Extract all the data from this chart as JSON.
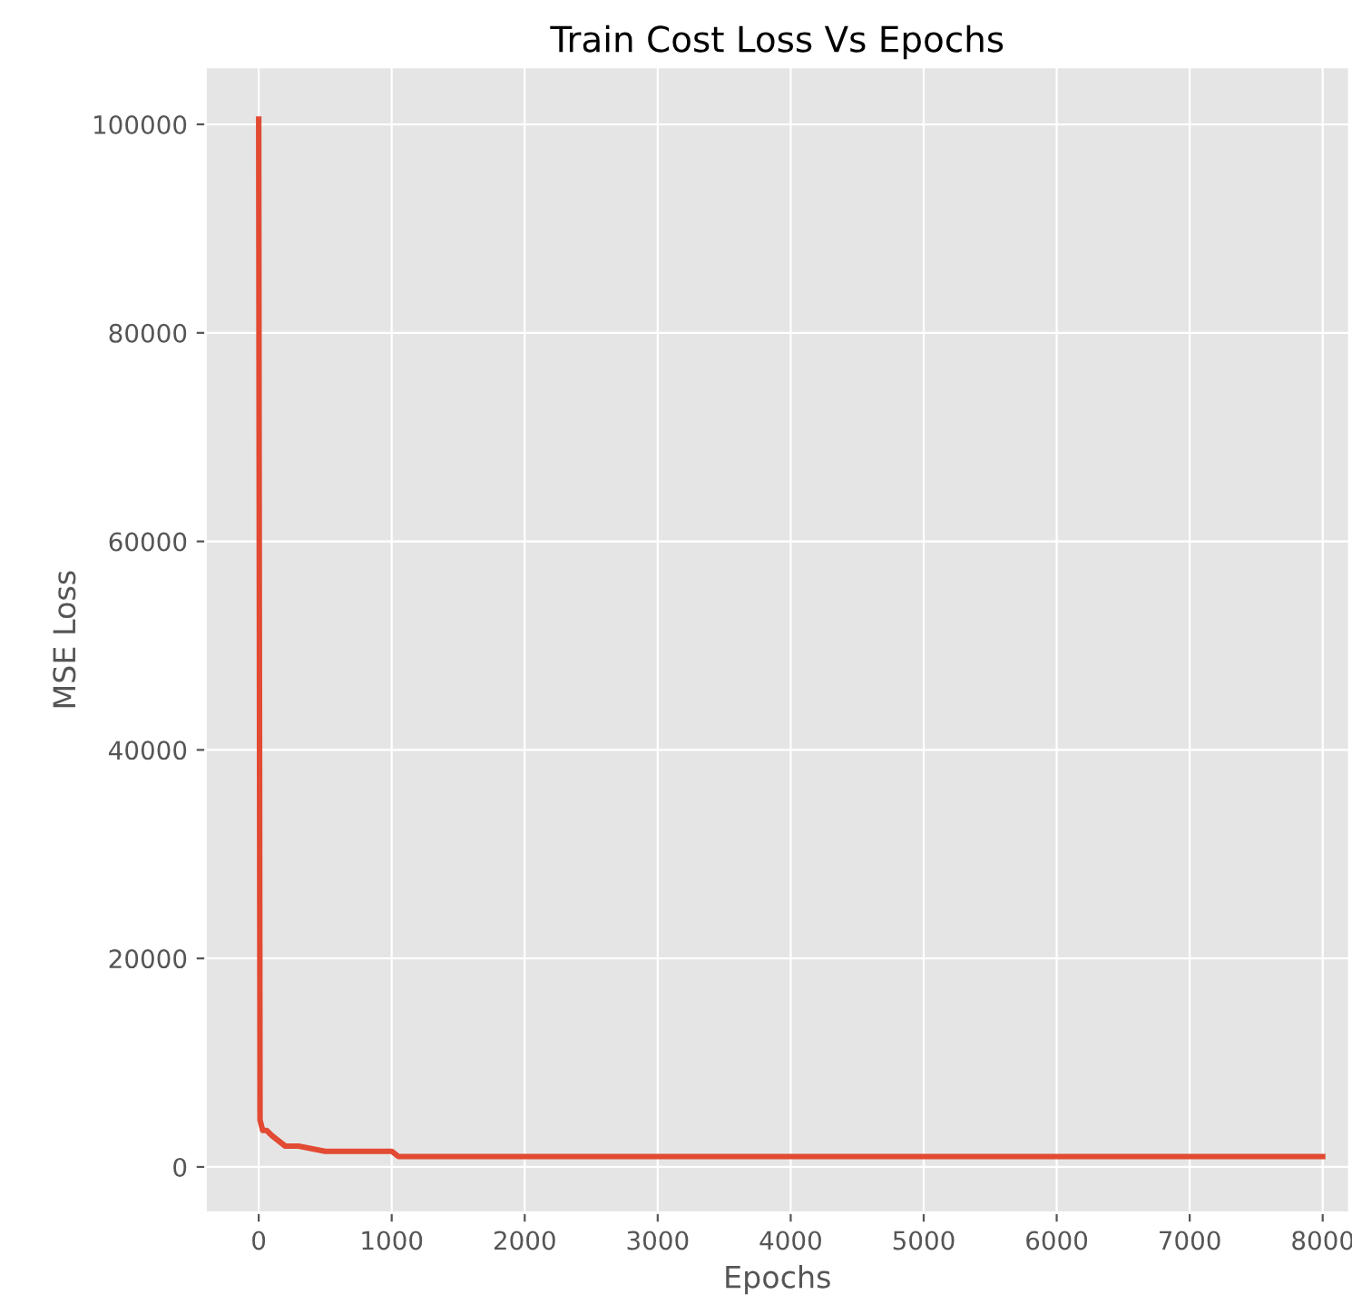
{
  "chart_data": {
    "type": "line",
    "title": "Train Cost Loss Vs Epochs",
    "xlabel": "Epochs",
    "ylabel": "MSE Loss",
    "x": [
      0,
      10,
      30,
      60,
      100,
      150,
      200,
      300,
      500,
      800,
      1000,
      1050,
      1200,
      1400,
      1500,
      2000,
      4000,
      6000,
      8000
    ],
    "series": [
      {
        "color": "#e24a33",
        "values": [
          100500,
          4500,
          3500,
          3500,
          3000,
          2500,
          2000,
          2000,
          1500,
          1500,
          1500,
          1000,
          1000,
          1000,
          1000,
          1000,
          1000,
          1000,
          1000
        ]
      }
    ],
    "xlim": [
      -400,
      8200
    ],
    "ylim": [
      -4400,
      105500
    ],
    "xticks": [
      0,
      1000,
      2000,
      3000,
      4000,
      5000,
      6000,
      7000,
      8000
    ],
    "yticks": [
      0,
      20000,
      40000,
      60000,
      80000,
      100000
    ],
    "grid": true,
    "legend": false,
    "marker": "none",
    "line_style": "solid"
  }
}
